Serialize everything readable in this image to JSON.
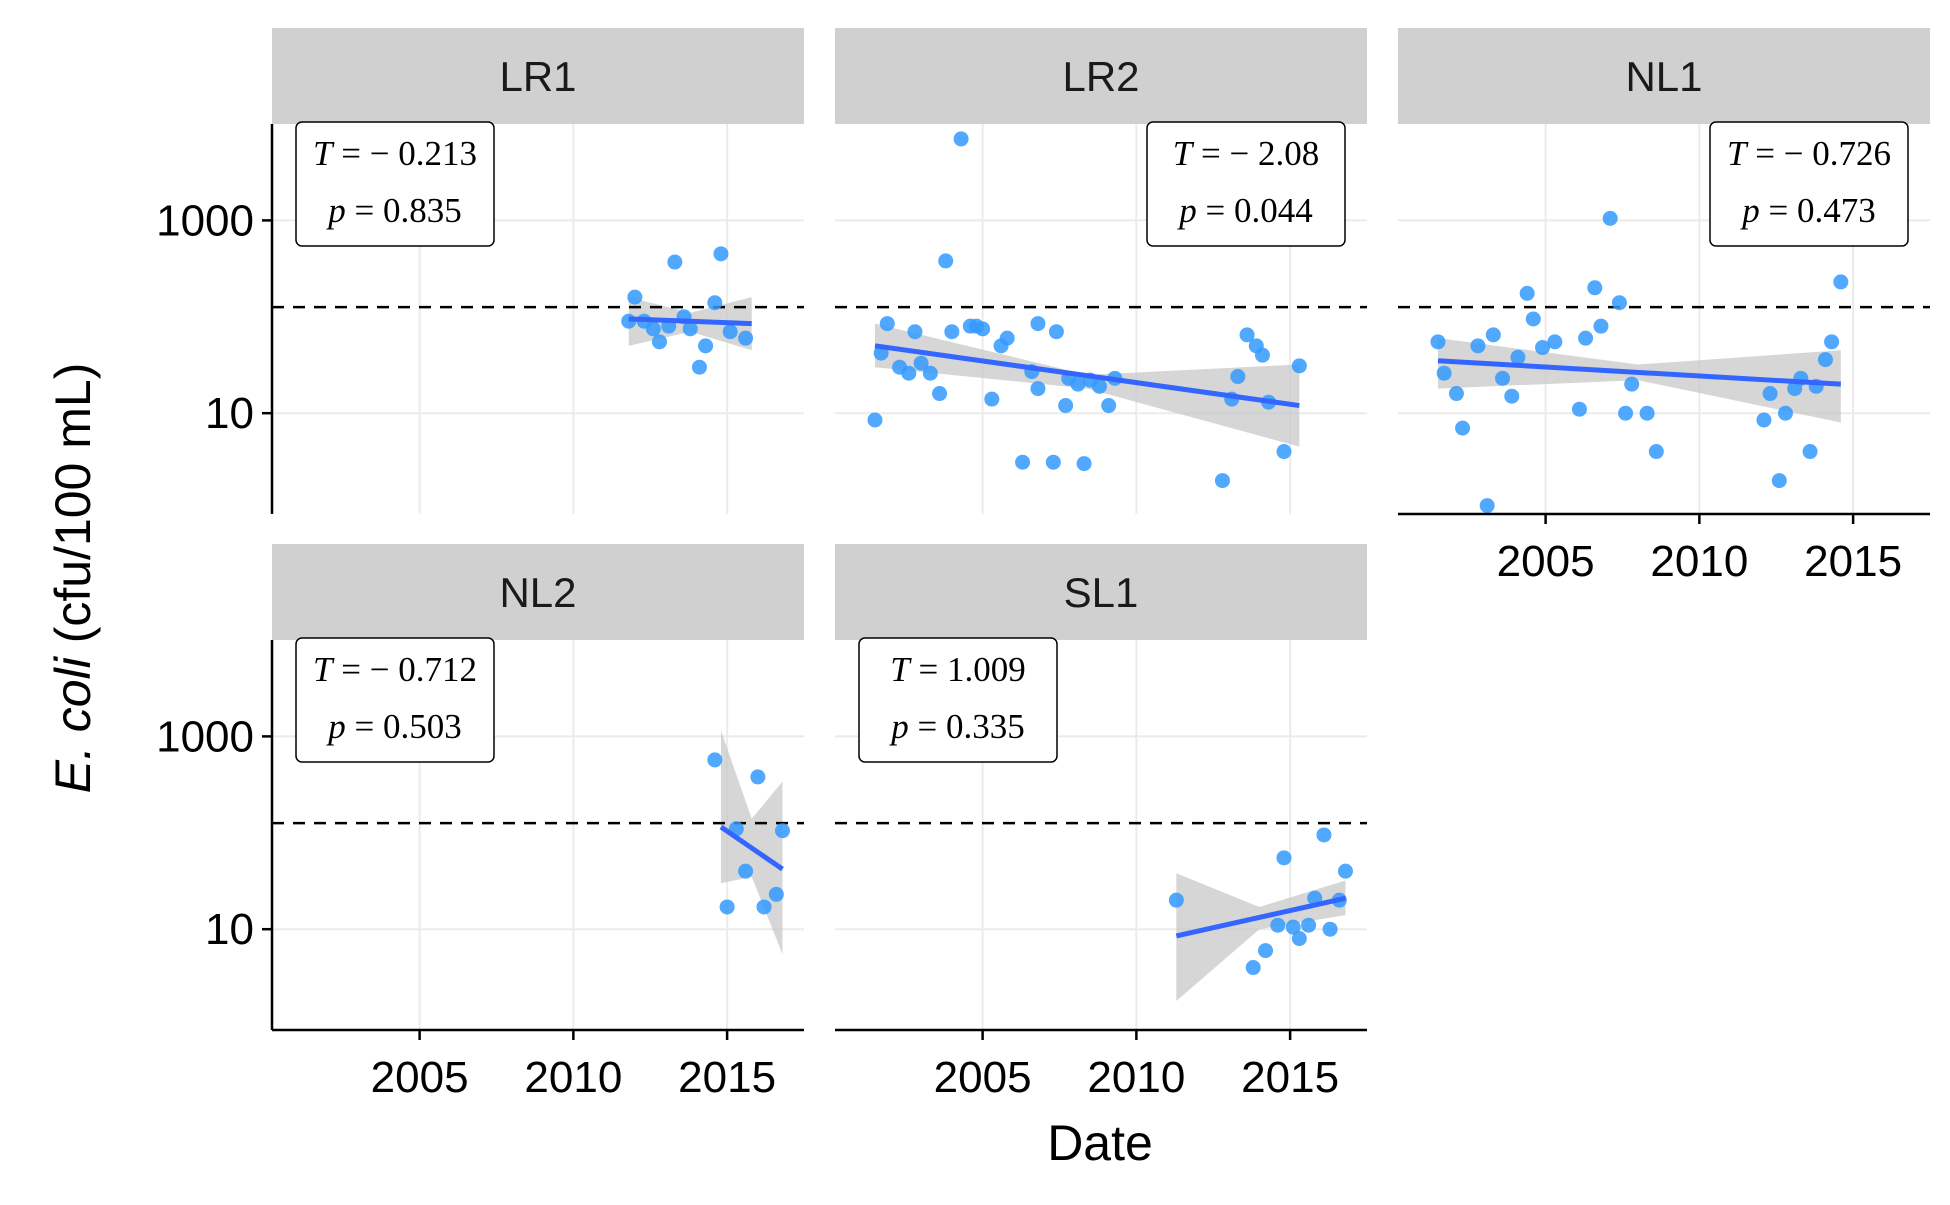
{
  "chart_data": {
    "type": "scatter",
    "layout": "faceted small multiples, 3 columns x 2 rows, free x scales",
    "xlabel": "Date",
    "ylabel_italic": "E. coli",
    "ylabel_rest": " (cfu/100 mL)",
    "x_ticks": [
      "2005",
      "2010",
      "2015"
    ],
    "y_ticks": [
      "10",
      "1000"
    ],
    "y_scale": "log10",
    "threshold_line": {
      "y": 126,
      "style": "dashed",
      "color": "#000000"
    },
    "colors": {
      "points": "#3399ff",
      "trend": "#3366ff",
      "ci_band": "#c8c8c8",
      "strip": "#d0d0d0",
      "gridline": "#ebebeb"
    },
    "grid": "light",
    "stat_box_prefix_T": "T = ",
    "stat_box_prefix_p": "p = ",
    "panels": [
      {
        "label": "LR1",
        "stat_T": "− 0.213",
        "stat_p": "0.835",
        "points": [
          {
            "x": 2011.8,
            "y": 90
          },
          {
            "x": 2012.0,
            "y": 160
          },
          {
            "x": 2012.3,
            "y": 90
          },
          {
            "x": 2012.6,
            "y": 75
          },
          {
            "x": 2012.8,
            "y": 55
          },
          {
            "x": 2013.1,
            "y": 80
          },
          {
            "x": 2013.3,
            "y": 370
          },
          {
            "x": 2013.6,
            "y": 100
          },
          {
            "x": 2013.8,
            "y": 75
          },
          {
            "x": 2014.1,
            "y": 30
          },
          {
            "x": 2014.3,
            "y": 50
          },
          {
            "x": 2014.6,
            "y": 140
          },
          {
            "x": 2014.8,
            "y": 450
          },
          {
            "x": 2015.1,
            "y": 70
          },
          {
            "x": 2015.6,
            "y": 60
          }
        ],
        "trend": {
          "x": [
            2011.8,
            2015.8
          ],
          "y": [
            95,
            85
          ]
        },
        "ci": {
          "x": [
            2011.8,
            2013.8,
            2015.8
          ],
          "lower": [
            50,
            70,
            45
          ],
          "upper": [
            160,
            110,
            160
          ]
        }
      },
      {
        "label": "LR2",
        "stat_T": "− 2.08",
        "stat_p": "0.044",
        "points": [
          {
            "x": 2001.5,
            "y": 8.5
          },
          {
            "x": 2001.7,
            "y": 42
          },
          {
            "x": 2001.9,
            "y": 85
          },
          {
            "x": 2002.3,
            "y": 30
          },
          {
            "x": 2002.6,
            "y": 26
          },
          {
            "x": 2002.8,
            "y": 70
          },
          {
            "x": 2003.0,
            "y": 33
          },
          {
            "x": 2003.3,
            "y": 26
          },
          {
            "x": 2003.6,
            "y": 16
          },
          {
            "x": 2003.8,
            "y": 380
          },
          {
            "x": 2004.0,
            "y": 70
          },
          {
            "x": 2004.3,
            "y": 7000
          },
          {
            "x": 2004.6,
            "y": 80
          },
          {
            "x": 2004.8,
            "y": 80
          },
          {
            "x": 2005.0,
            "y": 75
          },
          {
            "x": 2005.3,
            "y": 14
          },
          {
            "x": 2005.6,
            "y": 50
          },
          {
            "x": 2005.8,
            "y": 60
          },
          {
            "x": 2006.3,
            "y": 3.1
          },
          {
            "x": 2006.6,
            "y": 27
          },
          {
            "x": 2006.8,
            "y": 18
          },
          {
            "x": 2006.8,
            "y": 85
          },
          {
            "x": 2007.3,
            "y": 3.1
          },
          {
            "x": 2007.4,
            "y": 70
          },
          {
            "x": 2007.7,
            "y": 12
          },
          {
            "x": 2007.8,
            "y": 23
          },
          {
            "x": 2008.1,
            "y": 20
          },
          {
            "x": 2008.3,
            "y": 3.0
          },
          {
            "x": 2008.5,
            "y": 22
          },
          {
            "x": 2008.8,
            "y": 19
          },
          {
            "x": 2009.1,
            "y": 12
          },
          {
            "x": 2009.3,
            "y": 23
          },
          {
            "x": 2012.8,
            "y": 2.0
          },
          {
            "x": 2013.1,
            "y": 14
          },
          {
            "x": 2013.3,
            "y": 24
          },
          {
            "x": 2013.6,
            "y": 65
          },
          {
            "x": 2013.9,
            "y": 50
          },
          {
            "x": 2014.1,
            "y": 40
          },
          {
            "x": 2014.3,
            "y": 13
          },
          {
            "x": 2014.8,
            "y": 4.0
          },
          {
            "x": 2015.3,
            "y": 31
          }
        ],
        "trend": {
          "x": [
            2001.5,
            2015.3
          ],
          "y": [
            50,
            12
          ]
        },
        "ci": {
          "x": [
            2001.5,
            2008.4,
            2015.3
          ],
          "lower": [
            30,
            18,
            4.5
          ],
          "upper": [
            85,
            25,
            32
          ]
        }
      },
      {
        "label": "NL1",
        "stat_T": "− 0.726",
        "stat_p": "0.473",
        "points": [
          {
            "x": 2001.5,
            "y": 55
          },
          {
            "x": 2001.7,
            "y": 26
          },
          {
            "x": 2002.1,
            "y": 16
          },
          {
            "x": 2002.3,
            "y": 7
          },
          {
            "x": 2002.8,
            "y": 50
          },
          {
            "x": 2003.1,
            "y": 1.1
          },
          {
            "x": 2003.3,
            "y": 65
          },
          {
            "x": 2003.6,
            "y": 23
          },
          {
            "x": 2003.9,
            "y": 15
          },
          {
            "x": 2004.1,
            "y": 38
          },
          {
            "x": 2004.4,
            "y": 175
          },
          {
            "x": 2004.6,
            "y": 95
          },
          {
            "x": 2004.9,
            "y": 48
          },
          {
            "x": 2005.3,
            "y": 55
          },
          {
            "x": 2006.1,
            "y": 11
          },
          {
            "x": 2006.3,
            "y": 60
          },
          {
            "x": 2006.6,
            "y": 200
          },
          {
            "x": 2006.8,
            "y": 80
          },
          {
            "x": 2007.1,
            "y": 1050
          },
          {
            "x": 2007.4,
            "y": 140
          },
          {
            "x": 2007.6,
            "y": 10
          },
          {
            "x": 2007.8,
            "y": 20
          },
          {
            "x": 2008.3,
            "y": 10
          },
          {
            "x": 2008.6,
            "y": 4.0
          },
          {
            "x": 2012.1,
            "y": 8.5
          },
          {
            "x": 2012.3,
            "y": 16
          },
          {
            "x": 2012.6,
            "y": 2.0
          },
          {
            "x": 2012.8,
            "y": 10
          },
          {
            "x": 2013.1,
            "y": 18
          },
          {
            "x": 2013.3,
            "y": 23
          },
          {
            "x": 2013.6,
            "y": 4.0
          },
          {
            "x": 2013.8,
            "y": 19
          },
          {
            "x": 2014.1,
            "y": 36
          },
          {
            "x": 2014.3,
            "y": 55
          },
          {
            "x": 2014.6,
            "y": 230
          }
        ],
        "trend": {
          "x": [
            2001.5,
            2014.6
          ],
          "y": [
            35,
            20
          ]
        },
        "ci": {
          "x": [
            2001.5,
            2008.0,
            2014.6
          ],
          "lower": [
            18,
            22,
            8
          ],
          "upper": [
            60,
            32,
            45
          ]
        }
      },
      {
        "label": "NL2",
        "stat_T": "− 0.712",
        "stat_p": "0.503",
        "points": [
          {
            "x": 2014.6,
            "y": 570
          },
          {
            "x": 2015.0,
            "y": 17
          },
          {
            "x": 2015.3,
            "y": 110
          },
          {
            "x": 2015.6,
            "y": 40
          },
          {
            "x": 2016.0,
            "y": 380
          },
          {
            "x": 2016.2,
            "y": 17
          },
          {
            "x": 2016.6,
            "y": 23
          },
          {
            "x": 2016.8,
            "y": 105
          }
        ],
        "trend": {
          "x": [
            2014.8,
            2016.8
          ],
          "y": [
            115,
            42
          ]
        },
        "ci": {
          "x": [
            2014.8,
            2015.8,
            2016.8
          ],
          "lower": [
            30,
            35,
            5.5
          ],
          "upper": [
            1150,
            140,
            340
          ]
        }
      },
      {
        "label": "SL1",
        "stat_T": "1.009",
        "stat_p": "0.335",
        "points": [
          {
            "x": 2011.3,
            "y": 20
          },
          {
            "x": 2013.8,
            "y": 4.0
          },
          {
            "x": 2014.2,
            "y": 6.0
          },
          {
            "x": 2014.6,
            "y": 11
          },
          {
            "x": 2014.8,
            "y": 55
          },
          {
            "x": 2015.1,
            "y": 10.5
          },
          {
            "x": 2015.3,
            "y": 8
          },
          {
            "x": 2015.6,
            "y": 11
          },
          {
            "x": 2015.8,
            "y": 21
          },
          {
            "x": 2016.1,
            "y": 95
          },
          {
            "x": 2016.3,
            "y": 10
          },
          {
            "x": 2016.6,
            "y": 20
          },
          {
            "x": 2016.8,
            "y": 40
          }
        ],
        "trend": {
          "x": [
            2011.3,
            2016.8
          ],
          "y": [
            8.5,
            21
          ]
        },
        "ci": {
          "x": [
            2011.3,
            2014.0,
            2016.8
          ],
          "lower": [
            1.8,
            10,
            14
          ],
          "upper": [
            38,
            17,
            32
          ]
        }
      }
    ]
  }
}
